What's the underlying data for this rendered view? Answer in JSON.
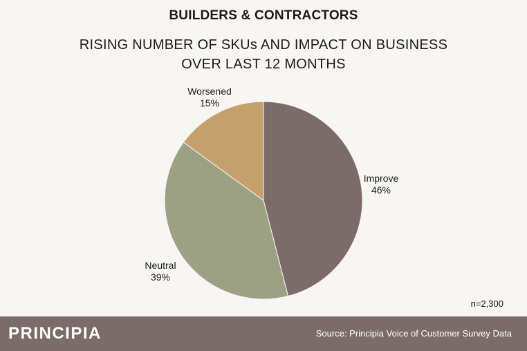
{
  "chart_data": {
    "type": "pie",
    "title": "BUILDERS & CONTRACTORS",
    "subtitle_line1": "RISING NUMBER OF SKUs AND IMPACT ON BUSINESS",
    "subtitle_line2": "OVER LAST 12 MONTHS",
    "slices": [
      {
        "name": "Improve",
        "value": 46,
        "label": "46%",
        "color": "#7b6c6a"
      },
      {
        "name": "Neutral",
        "value": 39,
        "label": "39%",
        "color": "#9ca184"
      },
      {
        "name": "Worsened",
        "value": 15,
        "label": "15%",
        "color": "#c3a06c"
      }
    ],
    "note": "n=2,300"
  },
  "footer": {
    "brand": "PRINCIPIA",
    "source": "Source: Principia Voice of Customer Survey Data"
  }
}
